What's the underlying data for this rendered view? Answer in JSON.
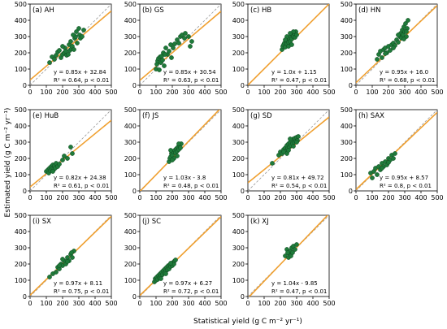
{
  "figure": {
    "xlabel": "Statistical yield (g C m⁻² yr⁻¹)",
    "ylabel": "Estimated yield (g C m⁻² yr⁻¹)"
  },
  "colors": {
    "point_fill": "#1f7a3a",
    "point_edge": "#0f4a20",
    "fit_line": "#f0a030",
    "one_to_one": "#999999"
  },
  "chart_data": [
    {
      "type": "scatter",
      "title": "(a) AH",
      "xlim": [
        0,
        500
      ],
      "ylim": [
        0,
        500
      ],
      "xticks": [
        "0",
        "100",
        "200",
        "300",
        "400",
        "500"
      ],
      "yticks": [
        "0",
        "100",
        "200",
        "300",
        "400",
        "500"
      ],
      "equation": "y = 0.85x + 32.84",
      "stats": "R² = 0.64, p < 0.01",
      "fit": {
        "slope": 0.85,
        "intercept": 32.84
      },
      "points": [
        [
          120,
          140
        ],
        [
          135,
          175
        ],
        [
          150,
          160
        ],
        [
          160,
          185
        ],
        [
          170,
          205
        ],
        [
          180,
          215
        ],
        [
          190,
          170
        ],
        [
          200,
          190
        ],
        [
          210,
          200
        ],
        [
          215,
          230
        ],
        [
          220,
          210
        ],
        [
          225,
          185
        ],
        [
          235,
          190
        ],
        [
          240,
          250
        ],
        [
          245,
          215
        ],
        [
          250,
          270
        ],
        [
          255,
          225
        ],
        [
          260,
          240
        ],
        [
          270,
          220
        ],
        [
          275,
          290
        ],
        [
          280,
          300
        ],
        [
          285,
          330
        ],
        [
          290,
          260
        ],
        [
          300,
          350
        ],
        [
          305,
          310
        ],
        [
          310,
          290
        ],
        [
          320,
          300
        ],
        [
          330,
          340
        ],
        [
          200,
          240
        ],
        [
          265,
          310
        ]
      ]
    },
    {
      "type": "scatter",
      "title": "(b) GS",
      "xlim": [
        0,
        500
      ],
      "ylim": [
        0,
        500
      ],
      "xticks": [
        "0",
        "100",
        "200",
        "300",
        "400",
        "500"
      ],
      "yticks": [
        "0",
        "100",
        "200",
        "300",
        "400",
        "500"
      ],
      "equation": "y = 0.85x + 30.54",
      "stats": "R² = 0.63, p < 0.01",
      "fit": {
        "slope": 0.85,
        "intercept": 30.54
      },
      "points": [
        [
          100,
          100
        ],
        [
          105,
          130
        ],
        [
          110,
          150
        ],
        [
          115,
          165
        ],
        [
          120,
          95
        ],
        [
          125,
          175
        ],
        [
          130,
          140
        ],
        [
          135,
          180
        ],
        [
          140,
          155
        ],
        [
          145,
          200
        ],
        [
          150,
          120
        ],
        [
          160,
          230
        ],
        [
          170,
          190
        ],
        [
          180,
          210
        ],
        [
          195,
          170
        ],
        [
          205,
          230
        ],
        [
          215,
          255
        ],
        [
          230,
          280
        ],
        [
          250,
          300
        ],
        [
          260,
          310
        ],
        [
          275,
          290
        ],
        [
          280,
          320
        ],
        [
          300,
          300
        ],
        [
          310,
          240
        ],
        [
          320,
          270
        ],
        [
          240,
          260
        ],
        [
          190,
          250
        ],
        [
          155,
          190
        ]
      ]
    },
    {
      "type": "scatter",
      "title": "(c) HB",
      "xlim": [
        0,
        500
      ],
      "ylim": [
        0,
        500
      ],
      "xticks": [
        "0",
        "100",
        "200",
        "300",
        "400",
        "500"
      ],
      "yticks": [
        "0",
        "100",
        "200",
        "300",
        "400",
        "500"
      ],
      "equation": "y = 1.0x + 1.15",
      "stats": "R² = 0.47, p < 0.01",
      "fit": {
        "slope": 1.0,
        "intercept": 1.15
      },
      "points": [
        [
          210,
          220
        ],
        [
          215,
          240
        ],
        [
          220,
          250
        ],
        [
          225,
          260
        ],
        [
          230,
          235
        ],
        [
          235,
          270
        ],
        [
          240,
          255
        ],
        [
          245,
          280
        ],
        [
          250,
          265
        ],
        [
          255,
          290
        ],
        [
          260,
          270
        ],
        [
          265,
          300
        ],
        [
          270,
          285
        ],
        [
          275,
          310
        ],
        [
          280,
          300
        ],
        [
          285,
          320
        ],
        [
          290,
          295
        ],
        [
          295,
          330
        ],
        [
          300,
          310
        ],
        [
          240,
          300
        ],
        [
          250,
          240
        ],
        [
          270,
          250
        ],
        [
          280,
          330
        ],
        [
          230,
          280
        ],
        [
          260,
          320
        ]
      ]
    },
    {
      "type": "scatter",
      "title": "(d) HN",
      "xlim": [
        0,
        500
      ],
      "ylim": [
        0,
        500
      ],
      "xticks": [
        "0",
        "100",
        "200",
        "300",
        "400",
        "500"
      ],
      "yticks": [
        "0",
        "100",
        "200",
        "300",
        "400",
        "500"
      ],
      "equation": "y = 0.95x + 16.0",
      "stats": "R² = 0.68, p < 0.01",
      "fit": {
        "slope": 0.95,
        "intercept": 16.0
      },
      "points": [
        [
          130,
          160
        ],
        [
          140,
          190
        ],
        [
          150,
          210
        ],
        [
          160,
          170
        ],
        [
          170,
          220
        ],
        [
          180,
          230
        ],
        [
          190,
          200
        ],
        [
          200,
          240
        ],
        [
          210,
          215
        ],
        [
          220,
          250
        ],
        [
          230,
          260
        ],
        [
          240,
          245
        ],
        [
          250,
          280
        ],
        [
          260,
          265
        ],
        [
          270,
          300
        ],
        [
          275,
          320
        ],
        [
          280,
          290
        ],
        [
          285,
          340
        ],
        [
          290,
          310
        ],
        [
          295,
          360
        ],
        [
          300,
          330
        ],
        [
          305,
          380
        ],
        [
          310,
          300
        ],
        [
          315,
          350
        ],
        [
          320,
          400
        ],
        [
          180,
          195
        ],
        [
          230,
          230
        ],
        [
          260,
          310
        ],
        [
          295,
          285
        ],
        [
          310,
          330
        ]
      ]
    },
    {
      "type": "scatter",
      "title": "(e) HuB",
      "xlim": [
        0,
        500
      ],
      "ylim": [
        0,
        500
      ],
      "xticks": [
        "0",
        "100",
        "200",
        "300",
        "400",
        "500"
      ],
      "yticks": [
        "0",
        "100",
        "200",
        "300",
        "400",
        "500"
      ],
      "equation": "y = 0.82x + 24.38",
      "stats": "R² = 0.61, p < 0.01",
      "fit": {
        "slope": 0.82,
        "intercept": 24.38
      },
      "points": [
        [
          100,
          120
        ],
        [
          110,
          130
        ],
        [
          115,
          110
        ],
        [
          120,
          140
        ],
        [
          125,
          125
        ],
        [
          130,
          150
        ],
        [
          135,
          135
        ],
        [
          140,
          160
        ],
        [
          145,
          130
        ],
        [
          150,
          155
        ],
        [
          155,
          140
        ],
        [
          160,
          170
        ],
        [
          170,
          150
        ],
        [
          180,
          165
        ],
        [
          200,
          190
        ],
        [
          210,
          215
        ],
        [
          230,
          200
        ],
        [
          250,
          270
        ],
        [
          260,
          230
        ],
        [
          140,
          120
        ]
      ]
    },
    {
      "type": "scatter",
      "title": "(f) JS",
      "xlim": [
        0,
        500
      ],
      "ylim": [
        0,
        500
      ],
      "xticks": [
        "0",
        "100",
        "200",
        "300",
        "400",
        "500"
      ],
      "yticks": [
        "0",
        "100",
        "200",
        "300",
        "400",
        "500"
      ],
      "equation": "y = 1.03x - 3.8",
      "stats": "R² = 0.48, p < 0.01",
      "fit": {
        "slope": 1.03,
        "intercept": -3.8
      },
      "points": [
        [
          180,
          180
        ],
        [
          185,
          200
        ],
        [
          190,
          210
        ],
        [
          195,
          230
        ],
        [
          200,
          220
        ],
        [
          205,
          240
        ],
        [
          210,
          200
        ],
        [
          215,
          250
        ],
        [
          220,
          235
        ],
        [
          225,
          260
        ],
        [
          230,
          245
        ],
        [
          235,
          270
        ],
        [
          240,
          255
        ],
        [
          245,
          280
        ],
        [
          250,
          265
        ],
        [
          255,
          290
        ],
        [
          190,
          250
        ],
        [
          200,
          190
        ],
        [
          230,
          215
        ],
        [
          240,
          290
        ]
      ]
    },
    {
      "type": "scatter",
      "title": "(g) SD",
      "xlim": [
        0,
        500
      ],
      "ylim": [
        0,
        500
      ],
      "xticks": [
        "0",
        "100",
        "200",
        "300",
        "400",
        "500"
      ],
      "yticks": [
        "0",
        "100",
        "200",
        "300",
        "400",
        "500"
      ],
      "equation": "y = 0.81x + 49.72",
      "stats": "R² = 0.54, p < 0.01",
      "fit": {
        "slope": 0.81,
        "intercept": 49.72
      },
      "points": [
        [
          150,
          170
        ],
        [
          190,
          220
        ],
        [
          200,
          240
        ],
        [
          210,
          230
        ],
        [
          220,
          255
        ],
        [
          230,
          265
        ],
        [
          235,
          245
        ],
        [
          240,
          280
        ],
        [
          245,
          260
        ],
        [
          250,
          290
        ],
        [
          255,
          270
        ],
        [
          260,
          300
        ],
        [
          265,
          280
        ],
        [
          270,
          310
        ],
        [
          275,
          290
        ],
        [
          280,
          320
        ],
        [
          285,
          300
        ],
        [
          290,
          325
        ],
        [
          295,
          305
        ],
        [
          300,
          330
        ],
        [
          305,
          310
        ],
        [
          310,
          335
        ],
        [
          240,
          230
        ],
        [
          260,
          320
        ],
        [
          280,
          275
        ],
        [
          300,
          300
        ],
        [
          220,
          240
        ],
        [
          250,
          250
        ]
      ]
    },
    {
      "type": "scatter",
      "title": "(h) SAX",
      "xlim": [
        0,
        500
      ],
      "ylim": [
        0,
        500
      ],
      "xticks": [
        "0",
        "100",
        "200",
        "300",
        "400",
        "500"
      ],
      "yticks": [
        "0",
        "100",
        "200",
        "300",
        "400",
        "500"
      ],
      "equation": "y = 0.95x + 8.57",
      "stats": "R² = 0.8, p < 0.01",
      "fit": {
        "slope": 0.95,
        "intercept": 8.57
      },
      "points": [
        [
          90,
          110
        ],
        [
          100,
          80
        ],
        [
          110,
          120
        ],
        [
          120,
          140
        ],
        [
          130,
          100
        ],
        [
          140,
          150
        ],
        [
          150,
          130
        ],
        [
          160,
          170
        ],
        [
          170,
          150
        ],
        [
          180,
          180
        ],
        [
          190,
          160
        ],
        [
          200,
          200
        ],
        [
          210,
          190
        ],
        [
          220,
          220
        ],
        [
          230,
          200
        ],
        [
          240,
          230
        ],
        [
          160,
          140
        ],
        [
          200,
          175
        ]
      ]
    },
    {
      "type": "scatter",
      "title": "(i) SX",
      "xlim": [
        0,
        500
      ],
      "ylim": [
        0,
        500
      ],
      "xticks": [
        "0",
        "100",
        "200",
        "300",
        "400",
        "500"
      ],
      "yticks": [
        "0",
        "100",
        "200",
        "300",
        "400",
        "500"
      ],
      "equation": "y = 0.97x + 8.11",
      "stats": "R² = 0.75, p < 0.01",
      "fit": {
        "slope": 0.97,
        "intercept": 8.11
      },
      "points": [
        [
          120,
          120
        ],
        [
          140,
          140
        ],
        [
          160,
          150
        ],
        [
          170,
          180
        ],
        [
          180,
          170
        ],
        [
          190,
          200
        ],
        [
          200,
          190
        ],
        [
          210,
          220
        ],
        [
          220,
          200
        ],
        [
          230,
          240
        ],
        [
          240,
          220
        ],
        [
          250,
          260
        ],
        [
          260,
          240
        ],
        [
          270,
          280
        ],
        [
          200,
          230
        ],
        [
          180,
          190
        ],
        [
          230,
          215
        ],
        [
          255,
          270
        ]
      ]
    },
    {
      "type": "scatter",
      "title": "(j) SC",
      "xlim": [
        0,
        500
      ],
      "ylim": [
        0,
        500
      ],
      "xticks": [
        "0",
        "100",
        "200",
        "300",
        "400",
        "500"
      ],
      "yticks": [
        "0",
        "100",
        "200",
        "300",
        "400",
        "500"
      ],
      "equation": "y = 0.97x + 6.27",
      "stats": "R² = 0.72, p < 0.01",
      "fit": {
        "slope": 0.97,
        "intercept": 6.27
      },
      "points": [
        [
          90,
          90
        ],
        [
          95,
          110
        ],
        [
          100,
          100
        ],
        [
          105,
          120
        ],
        [
          110,
          105
        ],
        [
          115,
          130
        ],
        [
          120,
          115
        ],
        [
          125,
          140
        ],
        [
          130,
          125
        ],
        [
          135,
          150
        ],
        [
          140,
          135
        ],
        [
          145,
          160
        ],
        [
          150,
          145
        ],
        [
          155,
          170
        ],
        [
          160,
          155
        ],
        [
          165,
          180
        ],
        [
          170,
          165
        ],
        [
          175,
          190
        ],
        [
          180,
          170
        ],
        [
          185,
          195
        ],
        [
          190,
          185
        ],
        [
          195,
          200
        ],
        [
          200,
          190
        ],
        [
          205,
          210
        ],
        [
          210,
          200
        ],
        [
          215,
          220
        ],
        [
          220,
          225
        ],
        [
          130,
          110
        ],
        [
          160,
          140
        ],
        [
          190,
          205
        ]
      ]
    },
    {
      "type": "scatter",
      "title": "(k) XJ",
      "xlim": [
        0,
        500
      ],
      "ylim": [
        0,
        500
      ],
      "xticks": [
        "0",
        "100",
        "200",
        "300",
        "400",
        "500"
      ],
      "yticks": [
        "0",
        "100",
        "200",
        "300",
        "400",
        "500"
      ],
      "equation": "y = 1.04x - 9.85",
      "stats": "R² = 0.47, p < 0.01",
      "fit": {
        "slope": 1.04,
        "intercept": -9.85
      },
      "points": [
        [
          230,
          250
        ],
        [
          240,
          290
        ],
        [
          250,
          240
        ],
        [
          255,
          265
        ],
        [
          260,
          280
        ],
        [
          265,
          250
        ],
        [
          270,
          300
        ],
        [
          275,
          270
        ],
        [
          280,
          310
        ],
        [
          290,
          290
        ],
        [
          300,
          320
        ],
        [
          245,
          270
        ]
      ]
    }
  ]
}
